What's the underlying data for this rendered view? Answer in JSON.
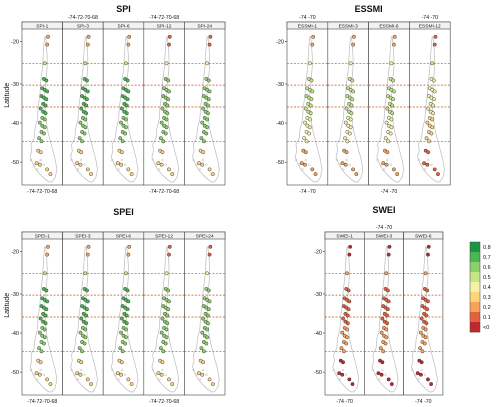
{
  "panels": [
    {
      "key": "spi",
      "title": "SPI",
      "subplots": [
        "SPI-1",
        "SPI-3",
        "SPI-6",
        "SPI-12",
        "SPI-24"
      ],
      "ylabel": "Latitude",
      "y_ticks": [
        "-20",
        "-30",
        "-40",
        "-50"
      ],
      "x_ticks_bottom": [
        {
          "col": 0,
          "text": "-74-72-70-68"
        },
        {
          "col": 3,
          "text": "-74-72-70-68"
        }
      ],
      "x_ticks_top": [
        {
          "col": 1,
          "text": "-74-72-70-68"
        },
        {
          "col": 3,
          "text": "-74-72-70-68"
        }
      ],
      "marker_scheme": "high"
    },
    {
      "key": "essmi",
      "title": "ESSMI",
      "subplots": [
        "ESSMI-1",
        "ESSMI-3",
        "ESSMI-6",
        "ESSMI-12"
      ],
      "ylabel": "",
      "y_ticks": [
        "-20",
        "-30",
        "-40",
        "-50"
      ],
      "x_ticks_bottom": [
        {
          "col": 0,
          "text": "-74 -70"
        },
        {
          "col": 2,
          "text": "-74 -70"
        }
      ],
      "x_ticks_top": [
        {
          "col": 0,
          "text": "-74 -70"
        },
        {
          "col": 3,
          "text": "-74 -70"
        }
      ],
      "marker_scheme": "mid"
    },
    {
      "key": "spei",
      "title": "SPEI",
      "subplots": [
        "SPEI-1",
        "SPEI-3",
        "SPEI-6",
        "SPEI-12",
        "SPEI-24"
      ],
      "ylabel": "Latitude",
      "y_ticks": [
        "-20",
        "-30",
        "-40",
        "-50"
      ],
      "x_ticks_bottom": [
        {
          "col": 0,
          "text": "-74-72-70-68"
        },
        {
          "col": 3,
          "text": "-74-72-70-68"
        }
      ],
      "x_ticks_top": [],
      "marker_scheme": "high"
    },
    {
      "key": "swei",
      "title": "SWEI",
      "subplots": [
        "SWEI-1",
        "SWEI-3",
        "SWEI-6"
      ],
      "ylabel": "",
      "y_ticks": [
        "-20",
        "-30",
        "-40",
        "-50"
      ],
      "x_ticks_bottom": [
        {
          "col": 0,
          "text": "-74 -70"
        },
        {
          "col": 2,
          "text": "-74 -70"
        }
      ],
      "x_ticks_top": [
        {
          "col": 1,
          "text": "-74 -70"
        }
      ],
      "marker_scheme": "low"
    }
  ],
  "colorbar": {
    "labels": [
      "0.8",
      "0.7",
      "0.6",
      "0.5",
      "0.4",
      "0.3",
      "0.2",
      "0.1",
      "<0"
    ],
    "colors": [
      "#1a9641",
      "#4db553",
      "#8cd06a",
      "#c4e687",
      "#f3f2a6",
      "#fdd37c",
      "#f7a259",
      "#e5603f",
      "#c1272d"
    ]
  },
  "map_colors": {
    "land": "#bcbcbc",
    "dashed_line": "#c0531f",
    "marker_outline": "#222222"
  }
}
